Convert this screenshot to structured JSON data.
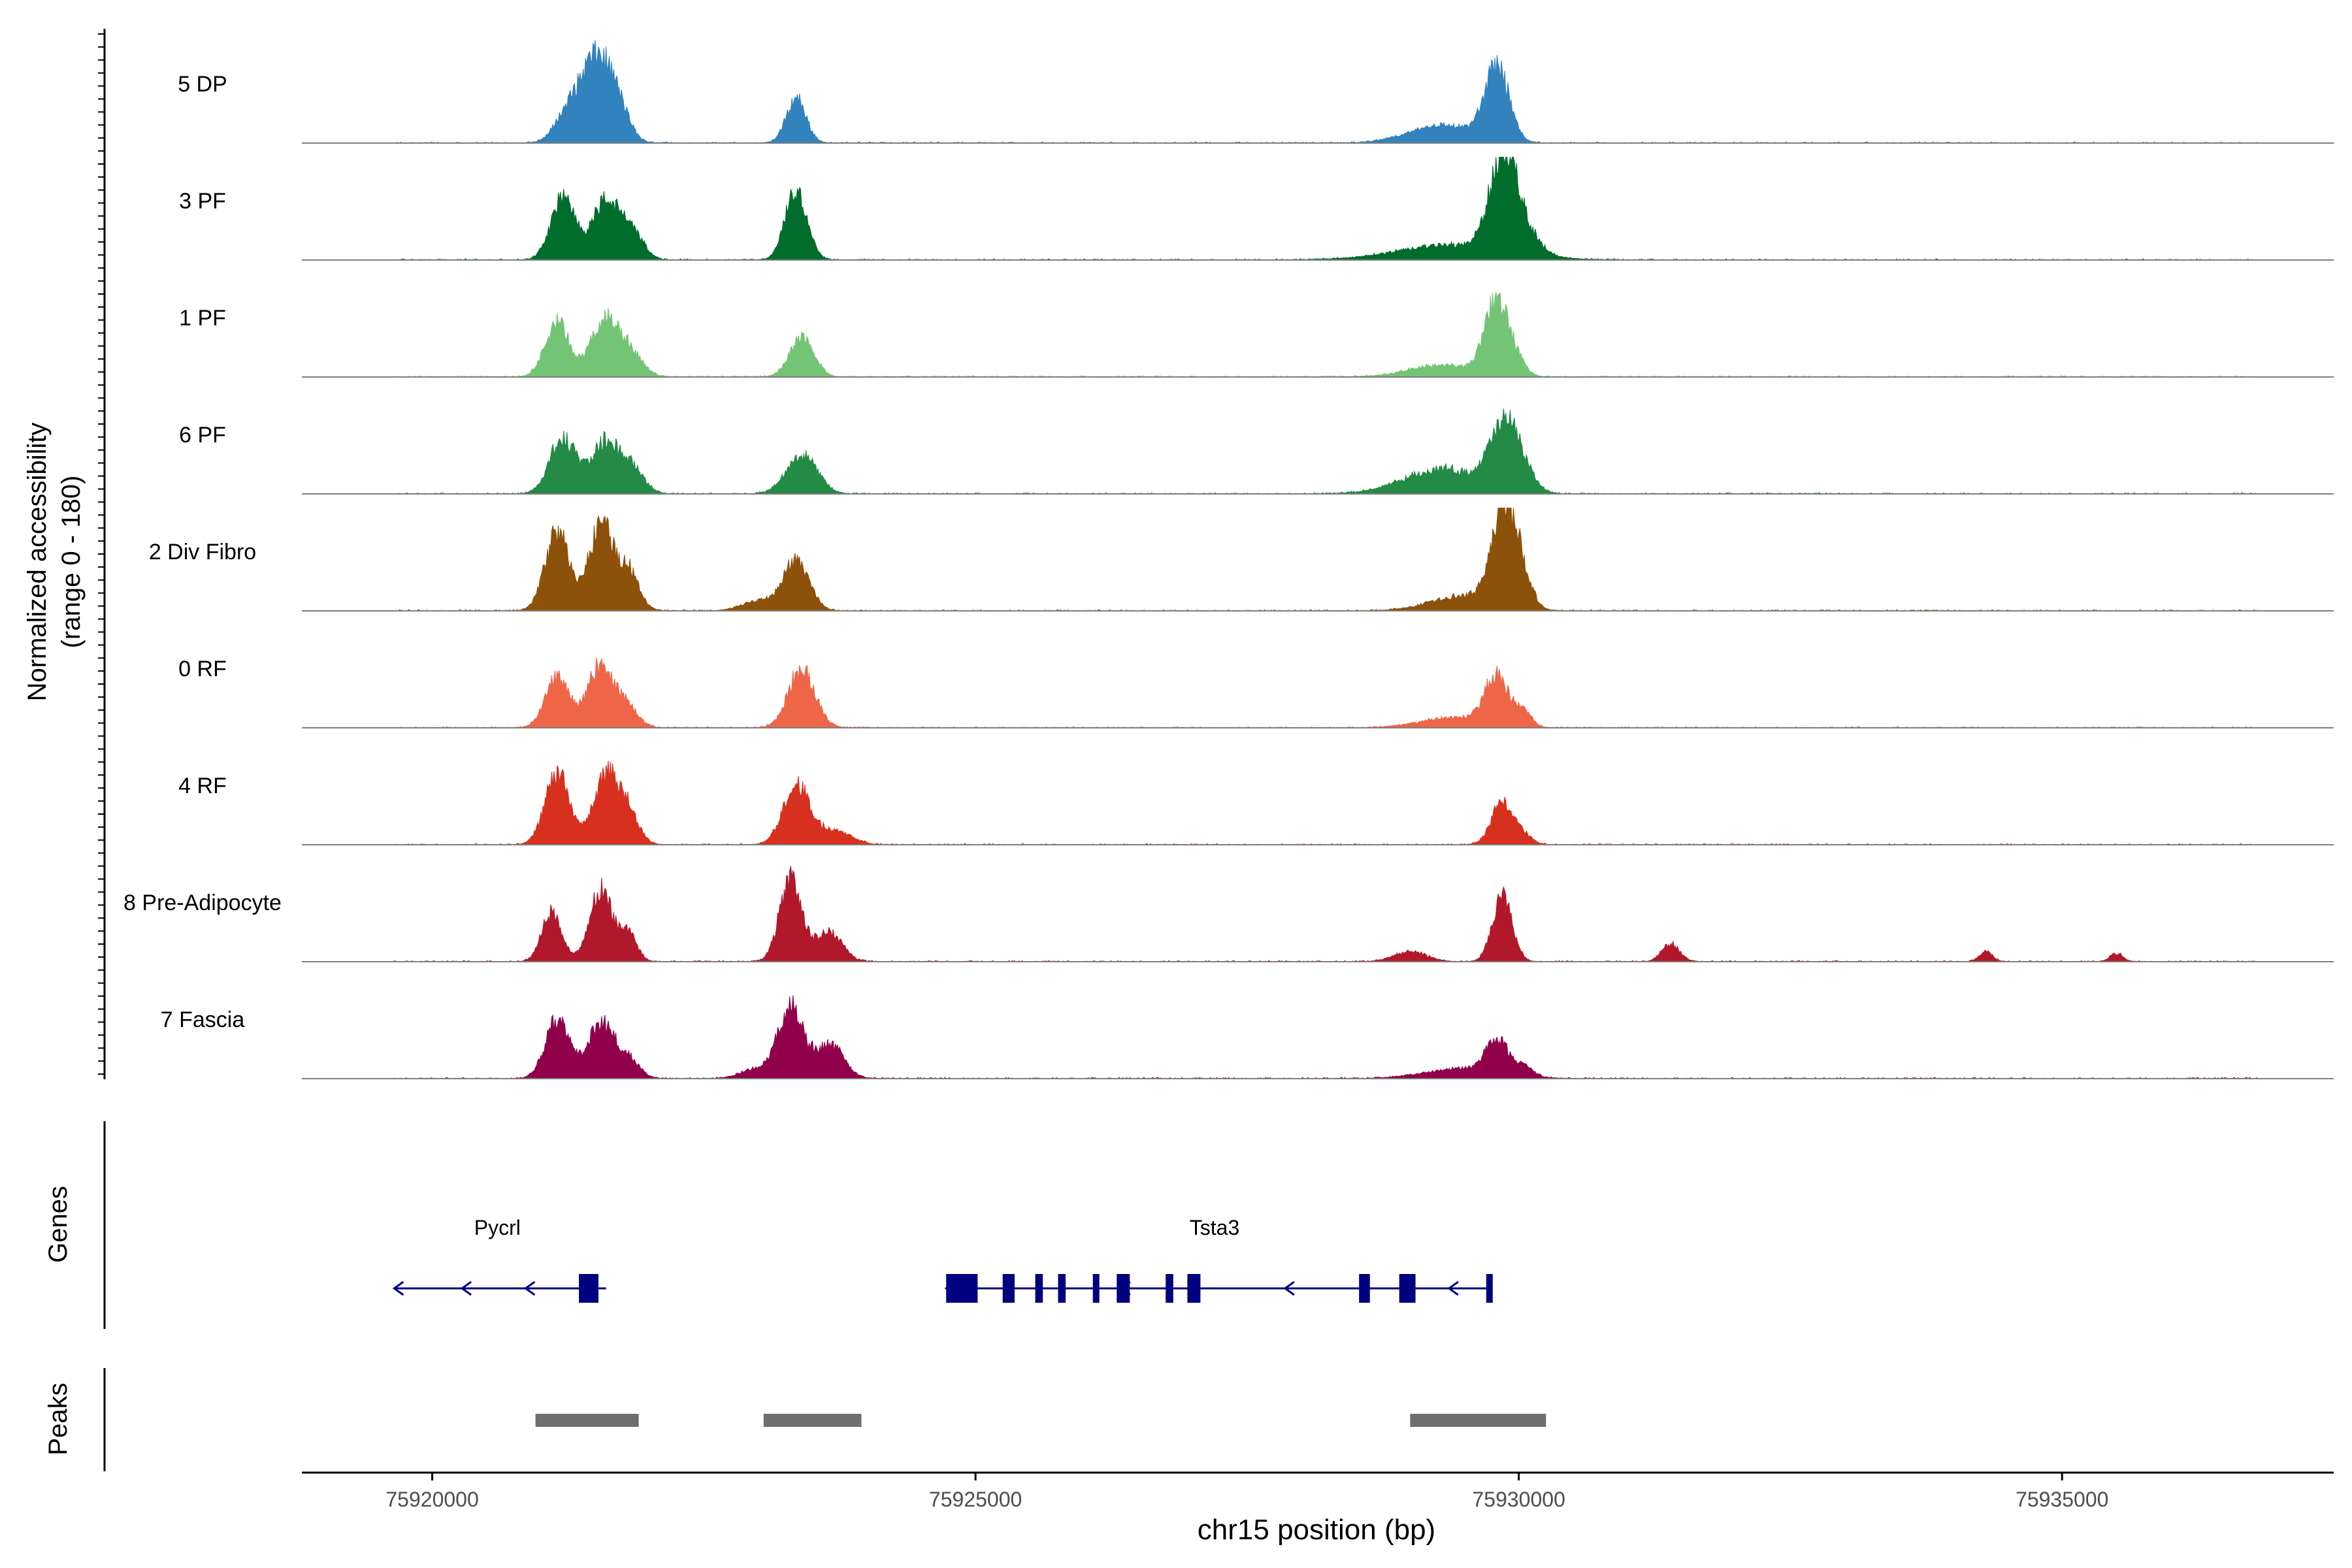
{
  "chart_data": {
    "type": "area",
    "ylabel_line1": "Normalized accessibility",
    "ylabel_line2": "(range 0 - 180)",
    "xlabel": "chr15 position (bp)",
    "xlim": [
      75918800,
      75937500
    ],
    "ylim": [
      0,
      180
    ],
    "x_ticks": [
      75920000,
      75925000,
      75930000,
      75935000
    ],
    "x_tick_labels": [
      "75920000",
      "75925000",
      "75930000",
      "75935000"
    ],
    "genes_label": "Genes",
    "peaks_label": "Peaks",
    "tracks": [
      {
        "name": "5 DP",
        "color": "#3182BD",
        "peaks": [
          [
            75921250,
            0.3,
            120
          ],
          [
            75921500,
            0.8,
            130
          ],
          [
            75921700,
            0.35,
            110
          ],
          [
            75923350,
            0.45,
            90
          ],
          [
            75929300,
            0.18,
            300
          ],
          [
            75929800,
            0.75,
            110
          ]
        ]
      },
      {
        "name": "3 PF",
        "color": "#006D2C",
        "peaks": [
          [
            75921200,
            0.62,
            110
          ],
          [
            75921600,
            0.6,
            130
          ],
          [
            75921850,
            0.25,
            100
          ],
          [
            75923350,
            0.7,
            100
          ],
          [
            75929400,
            0.15,
            500
          ],
          [
            75929850,
            0.85,
            120
          ],
          [
            75930000,
            0.3,
            150
          ]
        ]
      },
      {
        "name": "1 PF",
        "color": "#74C476",
        "peaks": [
          [
            75921150,
            0.55,
            110
          ],
          [
            75921600,
            0.6,
            130
          ],
          [
            75921850,
            0.2,
            100
          ],
          [
            75923400,
            0.4,
            110
          ],
          [
            75929300,
            0.12,
            300
          ],
          [
            75929800,
            0.75,
            110
          ],
          [
            75930000,
            0.1,
            80
          ]
        ]
      },
      {
        "name": "6 PF",
        "color": "#238B45",
        "peaks": [
          [
            75921200,
            0.55,
            120
          ],
          [
            75921600,
            0.52,
            140
          ],
          [
            75921850,
            0.2,
            110
          ],
          [
            75923400,
            0.4,
            140
          ],
          [
            75929300,
            0.25,
            350
          ],
          [
            75929850,
            0.55,
            130
          ],
          [
            75930000,
            0.25,
            120
          ]
        ]
      },
      {
        "name": "2 Div Fibro",
        "color": "#8C510A",
        "peaks": [
          [
            75921150,
            0.8,
            110
          ],
          [
            75921550,
            0.85,
            110
          ],
          [
            75921800,
            0.4,
            100
          ],
          [
            75923350,
            0.5,
            120
          ],
          [
            75923000,
            0.1,
            150
          ],
          [
            75929500,
            0.15,
            300
          ],
          [
            75929850,
            0.85,
            110
          ],
          [
            75930000,
            0.4,
            100
          ]
        ]
      },
      {
        "name": "0 RF",
        "color": "#EF6548",
        "peaks": [
          [
            75921150,
            0.5,
            110
          ],
          [
            75921550,
            0.62,
            120
          ],
          [
            75921800,
            0.2,
            100
          ],
          [
            75923400,
            0.6,
            120
          ],
          [
            75929400,
            0.1,
            300
          ],
          [
            75929800,
            0.5,
            110
          ],
          [
            75930050,
            0.15,
            70
          ]
        ]
      },
      {
        "name": "4 RF",
        "color": "#D7301F",
        "peaks": [
          [
            75921150,
            0.72,
            110
          ],
          [
            75921600,
            0.68,
            120
          ],
          [
            75921800,
            0.3,
            100
          ],
          [
            75923350,
            0.6,
            120
          ],
          [
            75923700,
            0.15,
            150
          ],
          [
            75929850,
            0.42,
            100
          ],
          [
            75930050,
            0.08,
            80
          ]
        ]
      },
      {
        "name": "8 Pre-Adipocyte",
        "color": "#B2182B",
        "peaks": [
          [
            75921100,
            0.5,
            90
          ],
          [
            75921550,
            0.75,
            100
          ],
          [
            75921800,
            0.3,
            80
          ],
          [
            75923300,
            0.85,
            100
          ],
          [
            75923650,
            0.3,
            120
          ],
          [
            75929000,
            0.1,
            150
          ],
          [
            75929850,
            0.65,
            90
          ],
          [
            75931400,
            0.18,
            80
          ],
          [
            75934300,
            0.1,
            60
          ],
          [
            75935500,
            0.08,
            60
          ]
        ]
      },
      {
        "name": "7 Fascia",
        "color": "#91004B",
        "peaks": [
          [
            75921150,
            0.6,
            110
          ],
          [
            75921550,
            0.55,
            120
          ],
          [
            75921800,
            0.2,
            100
          ],
          [
            75923300,
            0.72,
            110
          ],
          [
            75923650,
            0.35,
            130
          ],
          [
            75923000,
            0.1,
            150
          ],
          [
            75929500,
            0.1,
            350
          ],
          [
            75929800,
            0.35,
            100
          ],
          [
            75930050,
            0.1,
            80
          ]
        ]
      }
    ],
    "genes": [
      {
        "name": "Pycrl",
        "strand": "-",
        "start": 75919650,
        "end": 75921600,
        "label_pos": 75920600,
        "exons": [
          [
            75921350,
            75921530
          ]
        ]
      },
      {
        "name": "Tsta3",
        "strand": "-",
        "start": 75924730,
        "end": 75929760,
        "label_pos": 75927200,
        "exons": [
          [
            75924730,
            75925020
          ],
          [
            75925250,
            75925360
          ],
          [
            75925550,
            75925620
          ],
          [
            75925760,
            75925830
          ],
          [
            75926080,
            75926140
          ],
          [
            75926300,
            75926420
          ],
          [
            75926750,
            75926820
          ],
          [
            75926950,
            75927070
          ],
          [
            75928530,
            75928630
          ],
          [
            75928900,
            75929050
          ],
          [
            75929700,
            75929760
          ]
        ]
      }
    ],
    "peaks": [
      [
        75920950,
        75921900
      ],
      [
        75923050,
        75923950
      ],
      [
        75929000,
        75930250
      ]
    ],
    "colors": {
      "axis": "#000000",
      "baseline": "#7F7F7F",
      "gene": "#000080",
      "peak": "#6E6E6E"
    }
  }
}
